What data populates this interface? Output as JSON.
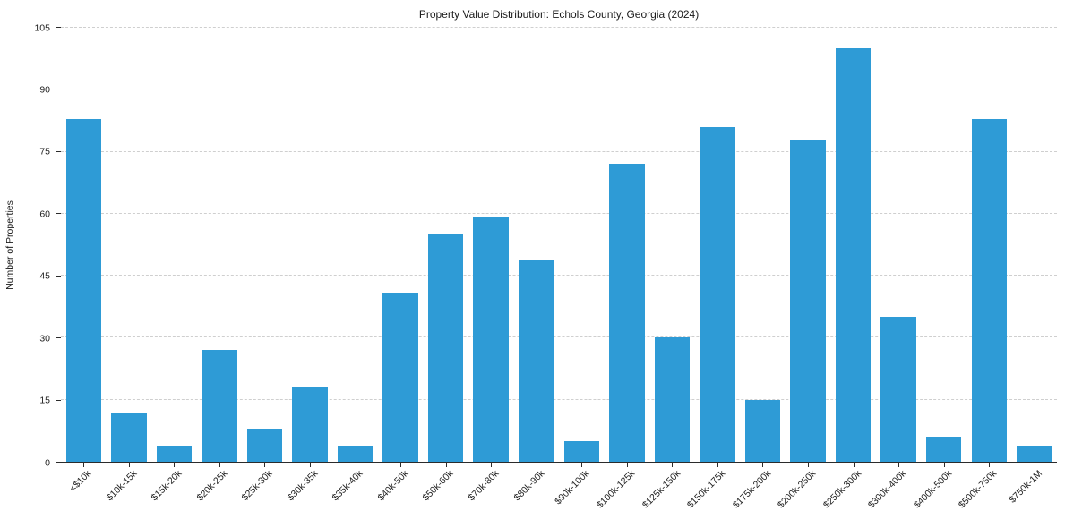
{
  "chart_data": {
    "type": "bar",
    "title": "Property Value Distribution: Echols County, Georgia (2024)",
    "xlabel": "",
    "ylabel": "Number of Properties",
    "ylim": [
      0,
      105
    ],
    "yticks": [
      0,
      15,
      30,
      45,
      60,
      75,
      90,
      105
    ],
    "grid": "horizontal-dashed",
    "legend": "none",
    "bar_color": "#2E9BD6",
    "categories": [
      "<$10k",
      "$10k-15k",
      "$15k-20k",
      "$20k-25k",
      "$25k-30k",
      "$30k-35k",
      "$35k-40k",
      "$40k-50k",
      "$50k-60k",
      "$70k-80k",
      "$80k-90k",
      "$90k-100k",
      "$100k-125k",
      "$125k-150k",
      "$150k-175k",
      "$175k-200k",
      "$200k-250k",
      "$250k-300k",
      "$300k-400k",
      "$400k-500k",
      "$500k-750k",
      "$750k-1M"
    ],
    "values": [
      83,
      12,
      4,
      27,
      8,
      18,
      4,
      41,
      55,
      59,
      49,
      5,
      72,
      30,
      81,
      15,
      78,
      100,
      35,
      6,
      83,
      4
    ]
  }
}
